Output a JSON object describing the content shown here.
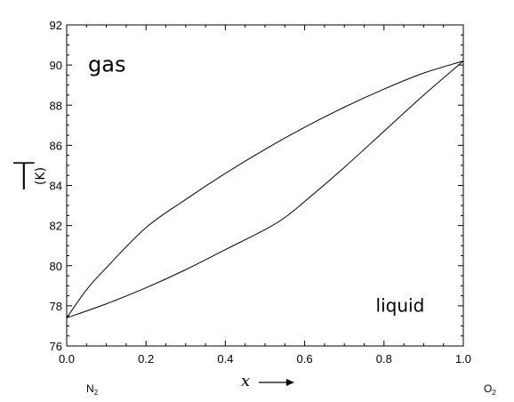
{
  "chart_data": {
    "type": "line",
    "title": "",
    "ylabel": {
      "main": "T",
      "unit": "(K)"
    },
    "xlabel": "x",
    "xlim": [
      0.0,
      1.0
    ],
    "ylim": [
      76,
      92
    ],
    "x_ticks": [
      "0.0",
      "0.2",
      "0.4",
      "0.6",
      "0.8",
      "1.0"
    ],
    "y_ticks": [
      "76",
      "78",
      "80",
      "82",
      "84",
      "86",
      "88",
      "90",
      "92"
    ],
    "x_tick_values": [
      0.0,
      0.2,
      0.4,
      0.6,
      0.8,
      1.0
    ],
    "y_tick_values": [
      76,
      78,
      80,
      82,
      84,
      86,
      88,
      90,
      92
    ],
    "grid": false,
    "legend": "none",
    "series": [
      {
        "x": [
          0.0,
          0.05,
          0.1,
          0.2,
          0.3,
          0.4,
          0.5,
          0.6,
          0.7,
          0.8,
          0.9,
          1.0
        ],
        "y": [
          77.4,
          78.8,
          79.9,
          81.9,
          83.3,
          84.6,
          85.8,
          86.9,
          87.9,
          88.8,
          89.6,
          90.2
        ],
        "color": "#000000"
      },
      {
        "x": [
          0.0,
          0.1,
          0.2,
          0.3,
          0.4,
          0.5,
          0.55,
          0.6,
          0.7,
          0.8,
          0.9,
          1.0
        ],
        "y": [
          77.4,
          78.1,
          78.9,
          79.8,
          80.8,
          81.8,
          82.4,
          83.2,
          84.9,
          86.7,
          88.5,
          90.2
        ],
        "color": "#000000"
      }
    ],
    "annotations": [
      {
        "text": "gas",
        "x": 0.11,
        "y": 90.2
      },
      {
        "text": "liquid",
        "x": 0.86,
        "y": 77.7
      }
    ],
    "end_labels": {
      "left": {
        "base": "N",
        "sub": "2"
      },
      "right": {
        "base": "O",
        "sub": "2"
      }
    }
  }
}
